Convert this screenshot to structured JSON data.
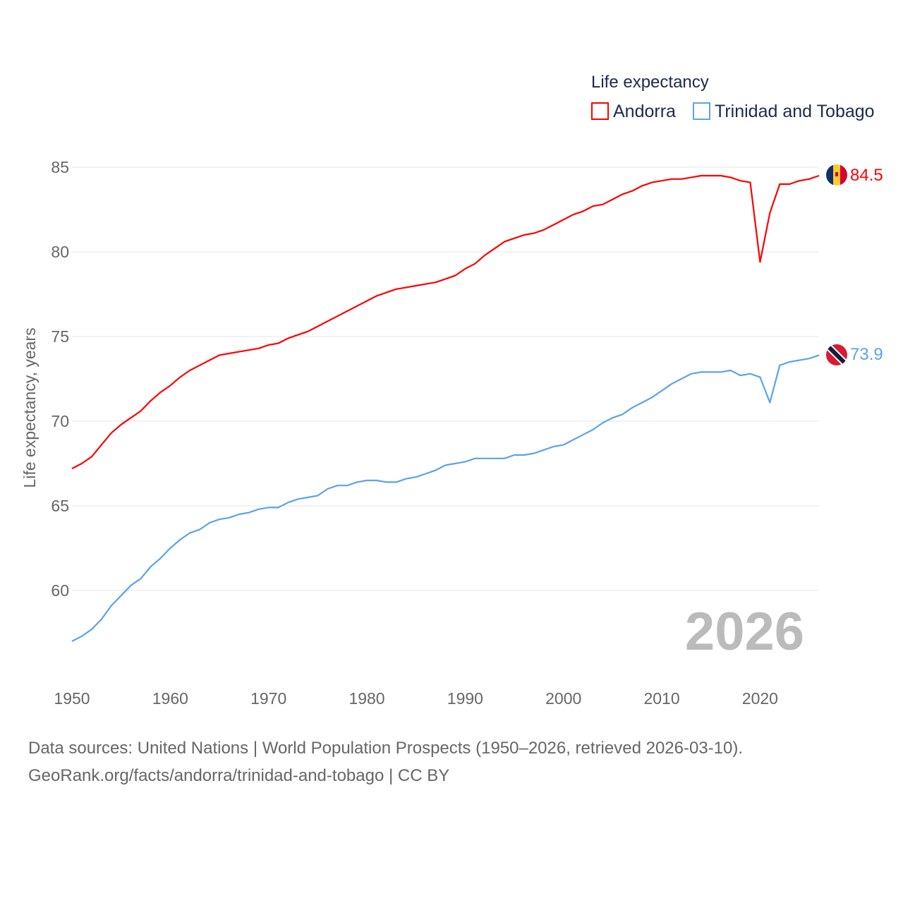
{
  "chart_data": {
    "type": "line",
    "title": "",
    "legend_title": "Life expectancy",
    "legend_position": "top-right",
    "ylabel": "Life expectancy, years",
    "xlabel": "",
    "xlim": [
      1950,
      2026
    ],
    "ylim": [
      55.5,
      86
    ],
    "grid": true,
    "x_ticks": [
      "1950",
      "1960",
      "1970",
      "1980",
      "1990",
      "2000",
      "2010",
      "2020"
    ],
    "y_ticks": [
      "60",
      "65",
      "70",
      "75",
      "80",
      "85"
    ],
    "year_label": "2026",
    "x": [
      1950,
      1951,
      1952,
      1953,
      1954,
      1955,
      1956,
      1957,
      1958,
      1959,
      1960,
      1961,
      1962,
      1963,
      1964,
      1965,
      1966,
      1967,
      1968,
      1969,
      1970,
      1971,
      1972,
      1973,
      1974,
      1975,
      1976,
      1977,
      1978,
      1979,
      1980,
      1981,
      1982,
      1983,
      1984,
      1985,
      1986,
      1987,
      1988,
      1989,
      1990,
      1991,
      1992,
      1993,
      1994,
      1995,
      1996,
      1997,
      1998,
      1999,
      2000,
      2001,
      2002,
      2003,
      2004,
      2005,
      2006,
      2007,
      2008,
      2009,
      2010,
      2011,
      2012,
      2013,
      2014,
      2015,
      2016,
      2017,
      2018,
      2019,
      2020,
      2021,
      2022,
      2023,
      2024,
      2025,
      2026
    ],
    "series": [
      {
        "name": "Andorra",
        "color": "#ff0000",
        "end_label": "84.5",
        "values": [
          67.2,
          67.5,
          67.9,
          68.6,
          69.3,
          69.8,
          70.2,
          70.6,
          71.2,
          71.7,
          72.1,
          72.6,
          73.0,
          73.3,
          73.6,
          73.9,
          74.0,
          74.1,
          74.2,
          74.3,
          74.5,
          74.6,
          74.9,
          75.1,
          75.3,
          75.6,
          75.9,
          76.2,
          76.5,
          76.8,
          77.1,
          77.4,
          77.6,
          77.8,
          77.9,
          78.0,
          78.1,
          78.2,
          78.4,
          78.6,
          79.0,
          79.3,
          79.8,
          80.2,
          80.6,
          80.8,
          81.0,
          81.1,
          81.3,
          81.6,
          81.9,
          82.2,
          82.4,
          82.7,
          82.8,
          83.1,
          83.4,
          83.6,
          83.9,
          84.1,
          84.2,
          84.3,
          84.3,
          84.4,
          84.5,
          84.5,
          84.5,
          84.4,
          84.2,
          84.1,
          79.4,
          82.3,
          84.0,
          84.0,
          84.2,
          84.3,
          84.5
        ]
      },
      {
        "name": "Trinidad and Tobago",
        "color": "#5ba3ea",
        "end_label": "73.9",
        "values": [
          57.0,
          57.3,
          57.7,
          58.3,
          59.1,
          59.7,
          60.3,
          60.7,
          61.4,
          61.9,
          62.5,
          63.0,
          63.4,
          63.6,
          64.0,
          64.2,
          64.3,
          64.5,
          64.6,
          64.8,
          64.9,
          64.9,
          65.2,
          65.4,
          65.5,
          65.6,
          66.0,
          66.2,
          66.2,
          66.4,
          66.5,
          66.5,
          66.4,
          66.4,
          66.6,
          66.7,
          66.9,
          67.1,
          67.4,
          67.5,
          67.6,
          67.8,
          67.8,
          67.8,
          67.8,
          68.0,
          68.0,
          68.1,
          68.3,
          68.5,
          68.6,
          68.9,
          69.2,
          69.5,
          69.9,
          70.2,
          70.4,
          70.8,
          71.1,
          71.4,
          71.8,
          72.2,
          72.5,
          72.8,
          72.9,
          72.9,
          72.9,
          73.0,
          72.7,
          72.8,
          72.6,
          71.1,
          73.3,
          73.5,
          73.6,
          73.7,
          73.9
        ]
      }
    ]
  },
  "source": {
    "line1": "Data sources: United Nations | World Population Prospects (1950–2026, retrieved 2026-03-10).",
    "line2": "GeoRank.org/facts/andorra/trinidad-and-tobago | CC BY"
  }
}
